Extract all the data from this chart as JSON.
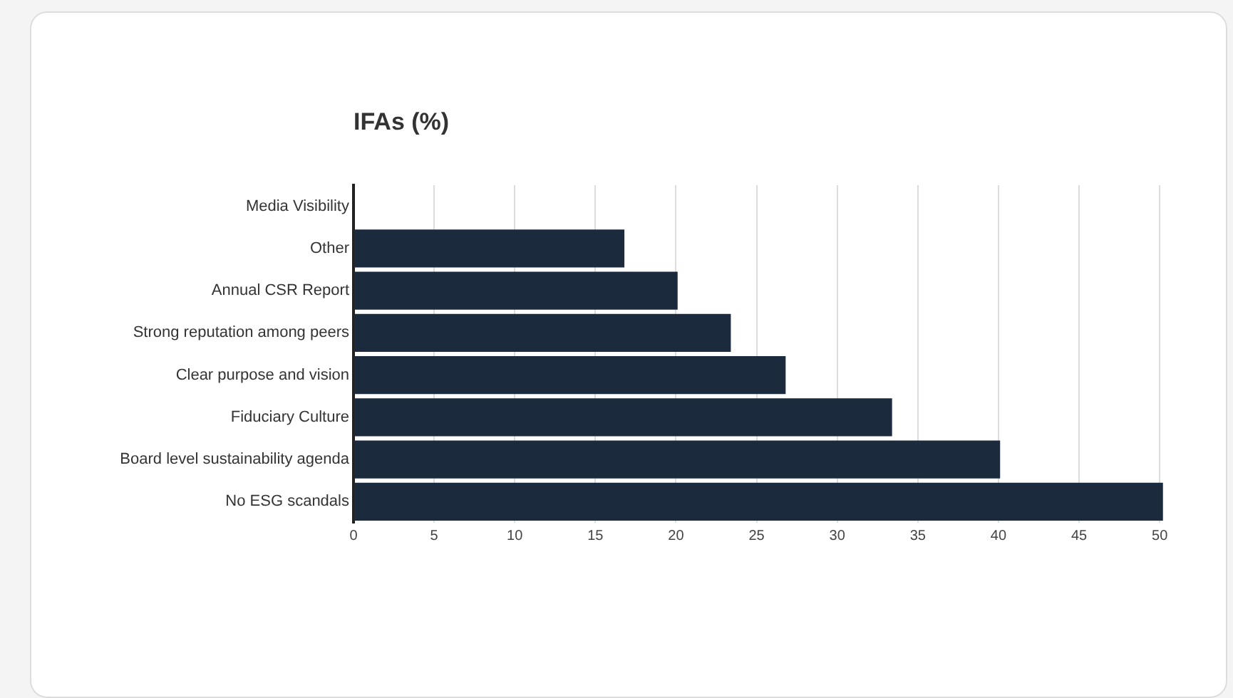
{
  "chart_data": {
    "type": "bar",
    "orientation": "horizontal",
    "title": "IFAs (%)",
    "categories": [
      "Media Visibility",
      "Other",
      "Annual CSR Report",
      "Strong reputation among peers",
      "Clear purpose and vision",
      "Fiduciary Culture",
      "Board level sustainability agenda",
      "No ESG scandals"
    ],
    "values": [
      0,
      16.8,
      20.1,
      23.4,
      26.8,
      33.4,
      40.1,
      50.2
    ],
    "color": "#1c2a3e",
    "xlim": [
      0,
      50.3
    ],
    "xticks": [
      0,
      5,
      10,
      15,
      20,
      25,
      30,
      35,
      40,
      45,
      50
    ],
    "grid": "x",
    "legend": false
  }
}
